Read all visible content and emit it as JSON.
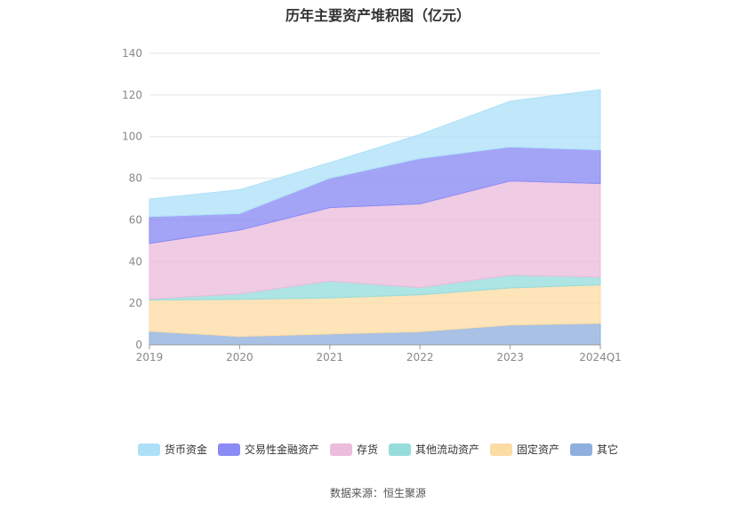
{
  "chart_data": {
    "type": "area",
    "title": "历年主要资产堆积图（亿元）",
    "stacked": true,
    "categories": [
      "2019",
      "2020",
      "2021",
      "2022",
      "2023",
      "2024Q1"
    ],
    "ylim": [
      0,
      140
    ],
    "yticks": [
      0,
      20,
      40,
      60,
      80,
      100,
      120,
      140
    ],
    "grid": true,
    "legend_position": "bottom",
    "series": [
      {
        "name": "其它",
        "color": "#8fb0de",
        "values": [
          6.5,
          4,
          5.2,
          6.3,
          9.5,
          10.3
        ]
      },
      {
        "name": "固定资产",
        "color": "#fcdca5",
        "values": [
          15,
          17.8,
          17.3,
          17.7,
          17.8,
          18.5
        ]
      },
      {
        "name": "其他流动资产",
        "color": "#96dcdc",
        "values": [
          0.5,
          2.7,
          8.1,
          3.5,
          6.2,
          3.7
        ]
      },
      {
        "name": "存货",
        "color": "#ebbcdc",
        "values": [
          26.7,
          30.6,
          35.3,
          40.2,
          45.2,
          45
        ]
      },
      {
        "name": "交易性金融资产",
        "color": "#8a8bf5",
        "values": [
          12.8,
          7.9,
          14.1,
          21.8,
          16.3,
          16.1
        ]
      },
      {
        "name": "货币资金",
        "color": "#aee1f8",
        "values": [
          8.5,
          11.5,
          7.5,
          11.5,
          22,
          29
        ]
      }
    ]
  },
  "legend_order": [
    "货币资金",
    "交易性金融资产",
    "存货",
    "其他流动资产",
    "固定资产",
    "其它"
  ],
  "source": "数据来源：恒生聚源"
}
